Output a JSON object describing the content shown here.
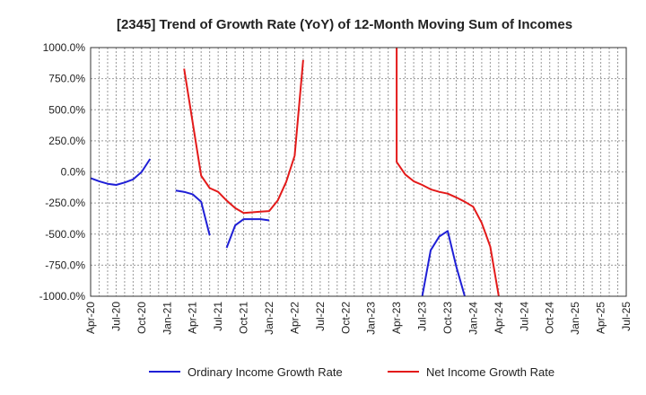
{
  "chart_data": {
    "type": "line",
    "title": "[2345]  Trend of Growth Rate (YoY) of 12-Month Moving Sum of Incomes",
    "xlabel": "",
    "ylabel": "",
    "ylim": [
      -1000,
      1000
    ],
    "ytick_values": [
      1000,
      750,
      500,
      250,
      0,
      -250,
      -500,
      -750,
      -1000
    ],
    "ytick_labels": [
      "1000.0%",
      "750.0%",
      "500.0%",
      "250.0%",
      "0.0%",
      "-250.0%",
      "-500.0%",
      "-750.0%",
      "-1000.0%"
    ],
    "xlim": [
      "2020-04",
      "2025-07"
    ],
    "xtick_labels": [
      "Apr-20",
      "Jul-20",
      "Oct-20",
      "Jan-21",
      "Apr-21",
      "Jul-21",
      "Oct-21",
      "Jan-22",
      "Apr-22",
      "Jul-22",
      "Oct-22",
      "Jan-23",
      "Apr-23",
      "Jul-23",
      "Oct-23",
      "Jan-24",
      "Apr-24",
      "Jul-24",
      "Oct-24",
      "Jan-25",
      "Apr-25",
      "Jul-25"
    ],
    "grid": true,
    "legend_position": "bottom",
    "series": [
      {
        "name": "Ordinary Income Growth Rate",
        "color": "#1f1fd6",
        "points": [
          [
            "2020-04",
            -50
          ],
          [
            "2020-05",
            -75
          ],
          [
            "2020-06",
            -95
          ],
          [
            "2020-07",
            -105
          ],
          [
            "2020-08",
            -85
          ],
          [
            "2020-09",
            -60
          ],
          [
            "2020-10",
            0
          ],
          [
            "2020-11",
            105
          ],
          [
            "2020-12",
            null
          ],
          [
            "2021-01",
            null
          ],
          [
            "2021-02",
            -150
          ],
          [
            "2021-03",
            -160
          ],
          [
            "2021-04",
            -180
          ],
          [
            "2021-05",
            -240
          ],
          [
            "2021-06",
            -510
          ],
          [
            "2021-07",
            null
          ],
          [
            "2021-08",
            -610
          ],
          [
            "2021-09",
            -430
          ],
          [
            "2021-10",
            -380
          ],
          [
            "2021-11",
            -380
          ],
          [
            "2021-12",
            -380
          ],
          [
            "2022-01",
            -390
          ],
          [
            "2022-02",
            null
          ],
          [
            "2023-06",
            null
          ],
          [
            "2023-07",
            -1000
          ],
          [
            "2023-08",
            -630
          ],
          [
            "2023-09",
            -520
          ],
          [
            "2023-10",
            -475
          ],
          [
            "2023-11",
            -760
          ],
          [
            "2023-12",
            -1000
          ]
        ]
      },
      {
        "name": "Net Income Growth Rate",
        "color": "#e31a1a",
        "points": [
          [
            "2021-03",
            830
          ],
          [
            "2021-04",
            400
          ],
          [
            "2021-05",
            -30
          ],
          [
            "2021-06",
            -130
          ],
          [
            "2021-07",
            -160
          ],
          [
            "2021-08",
            -230
          ],
          [
            "2021-09",
            -290
          ],
          [
            "2021-10",
            -330
          ],
          [
            "2021-11",
            -325
          ],
          [
            "2021-12",
            -320
          ],
          [
            "2022-01",
            -315
          ],
          [
            "2022-02",
            -230
          ],
          [
            "2022-03",
            -80
          ],
          [
            "2022-04",
            130
          ],
          [
            "2022-05",
            900
          ],
          [
            "2022-06",
            null
          ],
          [
            "2023-03",
            null
          ],
          [
            "2023-04",
            1000
          ],
          [
            "2023-04",
            80
          ],
          [
            "2023-05",
            -20
          ],
          [
            "2023-06",
            -75
          ],
          [
            "2023-07",
            -105
          ],
          [
            "2023-08",
            -140
          ],
          [
            "2023-09",
            -160
          ],
          [
            "2023-10",
            -175
          ],
          [
            "2023-11",
            -205
          ],
          [
            "2023-12",
            -240
          ],
          [
            "2024-01",
            -280
          ],
          [
            "2024-02",
            -410
          ],
          [
            "2024-03",
            -600
          ],
          [
            "2024-04",
            -1000
          ]
        ]
      }
    ]
  }
}
